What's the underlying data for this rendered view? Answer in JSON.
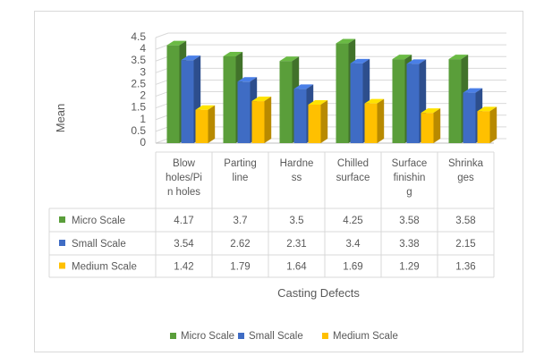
{
  "chart_data": {
    "type": "bar",
    "style": "3d-clustered-column-with-data-table",
    "ylabel": "Mean",
    "xlabel": "Casting Defects",
    "ylim": [
      0,
      4.5
    ],
    "yticks": [
      "0",
      "0.5",
      "1",
      "1.5",
      "2",
      "2.5",
      "3",
      "3.5",
      "4",
      "4.5"
    ],
    "categories": [
      [
        "Blow",
        "holes/Pi",
        "n holes"
      ],
      [
        "Parting",
        "line"
      ],
      [
        "Hardne",
        "ss"
      ],
      [
        "Chilled",
        "surface"
      ],
      [
        "Surface",
        "finishin",
        "g"
      ],
      [
        "Shrinka",
        "ges"
      ]
    ],
    "series": [
      {
        "name": "Micro Scale",
        "color": "#5a9e3a",
        "values": [
          4.17,
          3.7,
          3.5,
          4.25,
          3.58,
          3.58
        ],
        "labels": [
          "4.17",
          "3.7",
          "3.5",
          "4.25",
          "3.58",
          "3.58"
        ]
      },
      {
        "name": "Small Scale",
        "color": "#3f6cc4",
        "values": [
          3.54,
          2.62,
          2.31,
          3.4,
          3.38,
          2.15
        ],
        "labels": [
          "3.54",
          "2.62",
          "2.31",
          "3.4",
          "3.38",
          "2.15"
        ]
      },
      {
        "name": "Medium Scale",
        "color": "#ffc000",
        "values": [
          1.42,
          1.79,
          1.64,
          1.69,
          1.29,
          1.36
        ],
        "labels": [
          "1.42",
          "1.79",
          "1.64",
          "1.69",
          "1.29",
          "1.36"
        ]
      }
    ],
    "grid": true,
    "legend": "bottom"
  }
}
